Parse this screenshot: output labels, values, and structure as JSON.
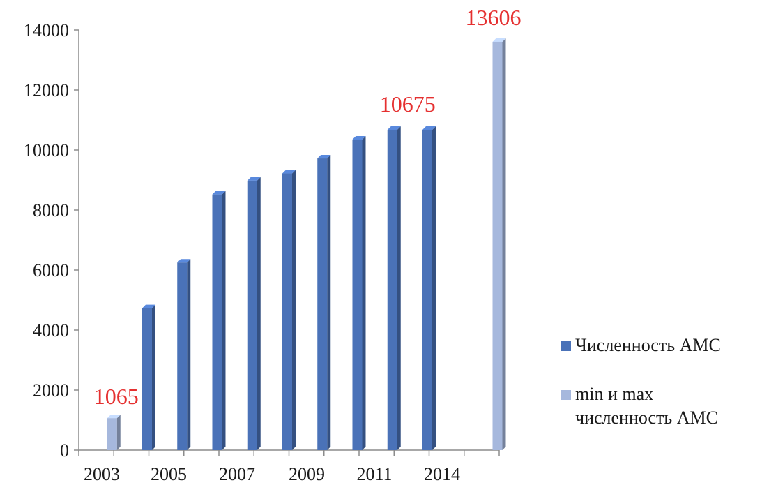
{
  "chart_data": {
    "type": "bar",
    "title": "",
    "xlabel": "",
    "ylabel": "",
    "ylim": [
      0,
      14000
    ],
    "yticks": [
      0,
      2000,
      4000,
      6000,
      8000,
      10000,
      12000,
      14000
    ],
    "xtick_labels": [
      "2003",
      "2005",
      "2007",
      "2009",
      "2011",
      "2014"
    ],
    "legend_position": "right",
    "grid": false,
    "series": [
      {
        "name": "Численность АМС",
        "color": "#4a72b8",
        "points": [
          {
            "x": "2004",
            "y": 4730
          },
          {
            "x": "2005",
            "y": 6250
          },
          {
            "x": "2006",
            "y": 8520
          },
          {
            "x": "2007",
            "y": 8980
          },
          {
            "x": "2008",
            "y": 9220
          },
          {
            "x": "2009",
            "y": 9720
          },
          {
            "x": "2010",
            "y": 10350
          },
          {
            "x": "2011",
            "y": 10675
          },
          {
            "x": "2012",
            "y": 10675
          }
        ]
      },
      {
        "name": "min и max численность АМС",
        "color": "#a6b8dd",
        "points": [
          {
            "x": "2003",
            "y": 1065
          },
          {
            "x": "2014",
            "y": 13606
          }
        ]
      }
    ],
    "annotations": [
      {
        "text": "1065",
        "x": "2003",
        "y": 1065,
        "color": "#e53030"
      },
      {
        "text": "10675",
        "x": "2011",
        "y": 10675,
        "color": "#e53030"
      },
      {
        "text": "13606",
        "x": "2014",
        "y": 13606,
        "color": "#e53030"
      }
    ]
  }
}
